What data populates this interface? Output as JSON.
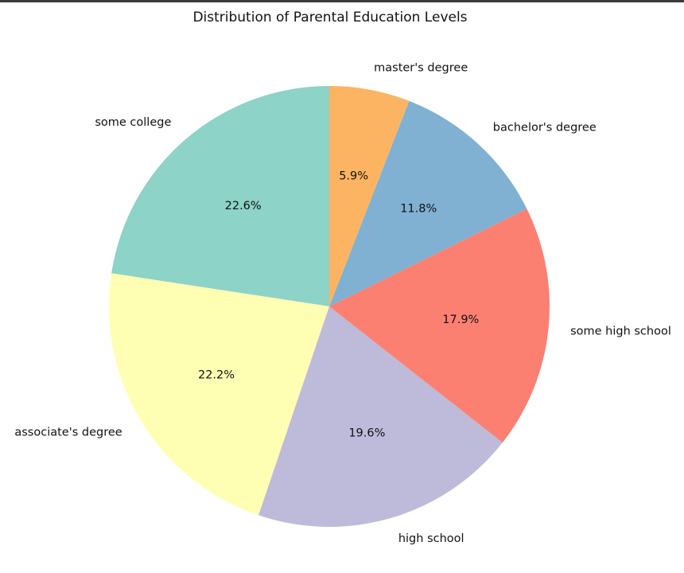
{
  "chart_data": {
    "type": "pie",
    "title": "Distribution of Parental Education Levels",
    "start_angle_deg": 90,
    "direction": "counterclockwise",
    "slices": [
      {
        "label": "some college",
        "value": 22.6,
        "pct_label": "22.6%",
        "color": "#8dd3c7"
      },
      {
        "label": "associate's degree",
        "value": 22.2,
        "pct_label": "22.2%",
        "color": "#ffffb3"
      },
      {
        "label": "high school",
        "value": 19.6,
        "pct_label": "19.6%",
        "color": "#bebada"
      },
      {
        "label": "some high school",
        "value": 17.9,
        "pct_label": "17.9%",
        "color": "#fb8072"
      },
      {
        "label": "bachelor's degree",
        "value": 11.8,
        "pct_label": "11.8%",
        "color": "#80b1d3"
      },
      {
        "label": "master's degree",
        "value": 5.9,
        "pct_label": "5.9%",
        "color": "#fdb462"
      }
    ]
  }
}
